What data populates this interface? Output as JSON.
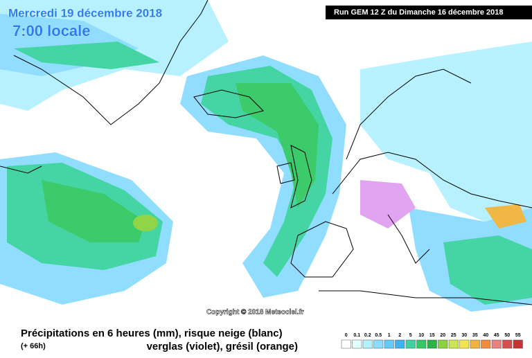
{
  "header": {
    "date": "Mercredi 19 décembre 2018",
    "time": "7:00 locale",
    "run": "Run GEM 12 Z du Dimanche 16 décembre 2018"
  },
  "copyright": "Copyright © 2018 Meteociel.fr",
  "legend": {
    "title": "Précipitations en 6 heures (mm), risque neige (blanc)",
    "lead": "(+ 66h)",
    "subtitle": "verglas (violet), grésil (orange)",
    "scale": [
      {
        "label": "0",
        "color": "#ffffff"
      },
      {
        "label": "0.1",
        "color": "#e1ffff"
      },
      {
        "label": "0.2",
        "color": "#b4f0ff"
      },
      {
        "label": "0.5",
        "color": "#8cdcff"
      },
      {
        "label": "1",
        "color": "#64c8fa"
      },
      {
        "label": "2",
        "color": "#3cb4f0"
      },
      {
        "label": "5",
        "color": "#3cd2a0"
      },
      {
        "label": "10",
        "color": "#32c864"
      },
      {
        "label": "15",
        "color": "#28b446"
      },
      {
        "label": "20",
        "color": "#8cd23c"
      },
      {
        "label": "25",
        "color": "#c8e650"
      },
      {
        "label": "30",
        "color": "#f0e650"
      },
      {
        "label": "35",
        "color": "#f0b43c"
      },
      {
        "label": "40",
        "color": "#f08c3c"
      },
      {
        "label": "45",
        "color": "#e68282"
      },
      {
        "label": "50",
        "color": "#d25050"
      },
      {
        "label": "55",
        "color": "#c83232"
      }
    ]
  }
}
